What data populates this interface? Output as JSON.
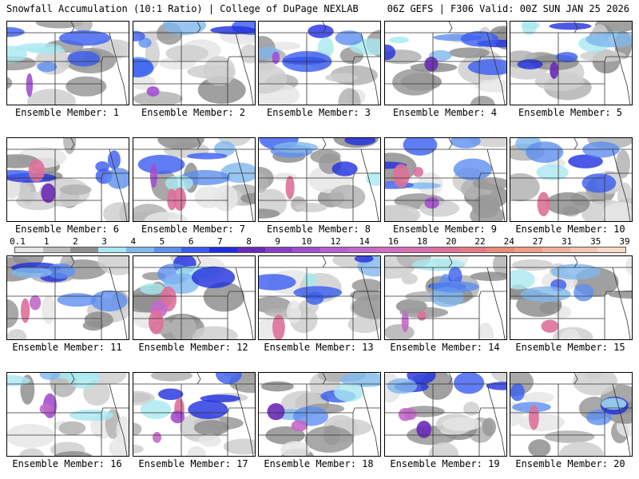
{
  "header": {
    "left_title": "Snowfall Accumulation (10:1 Ratio) | College of DuPage NEXLAB",
    "right_title": "06Z GEFS | F306 Valid: 00Z SUN JAN 25 2026"
  },
  "panel_label_prefix": "Ensemble Member:",
  "members": [
    {
      "id": 1,
      "label": "Ensemble Member: 1"
    },
    {
      "id": 2,
      "label": "Ensemble Member: 2"
    },
    {
      "id": 3,
      "label": "Ensemble Member: 3"
    },
    {
      "id": 4,
      "label": "Ensemble Member: 4"
    },
    {
      "id": 5,
      "label": "Ensemble Member: 5"
    },
    {
      "id": 6,
      "label": "Ensemble Member: 6"
    },
    {
      "id": 7,
      "label": "Ensemble Member: 7"
    },
    {
      "id": 8,
      "label": "Ensemble Member: 8"
    },
    {
      "id": 9,
      "label": "Ensemble Member: 9"
    },
    {
      "id": 10,
      "label": "Ensemble Member: 10"
    },
    {
      "id": 11,
      "label": "Ensemble Member: 11"
    },
    {
      "id": 12,
      "label": "Ensemble Member: 12"
    },
    {
      "id": 13,
      "label": "Ensemble Member: 13"
    },
    {
      "id": 14,
      "label": "Ensemble Member: 14"
    },
    {
      "id": 15,
      "label": "Ensemble Member: 15"
    },
    {
      "id": 16,
      "label": "Ensemble Member: 16"
    },
    {
      "id": 17,
      "label": "Ensemble Member: 17"
    },
    {
      "id": 18,
      "label": "Ensemble Member: 18"
    },
    {
      "id": 19,
      "label": "Ensemble Member: 19"
    },
    {
      "id": 20,
      "label": "Ensemble Member: 20"
    }
  ],
  "legend": {
    "levels": [
      "0.1",
      "1",
      "2",
      "3",
      "4",
      "5",
      "6",
      "7",
      "8",
      "9",
      "10",
      "12",
      "14",
      "16",
      "18",
      "20",
      "22",
      "24",
      "27",
      "31",
      "35",
      "39"
    ],
    "colors": [
      "#e6e6e6",
      "#bdbdbd",
      "#8f8f8f",
      "#a8e8f0",
      "#7fb8ee",
      "#5d8ff0",
      "#3a5cf0",
      "#1f2ee0",
      "#6a2ab8",
      "#8a3ec8",
      "#a24fcf",
      "#b85fd0",
      "#c26ac9",
      "#d06ebf",
      "#d86fae",
      "#de7099",
      "#e57a85",
      "#ea8a7a",
      "#ee9c84",
      "#f2b09a",
      "#f5c5b2",
      "#f8dac9"
    ]
  }
}
